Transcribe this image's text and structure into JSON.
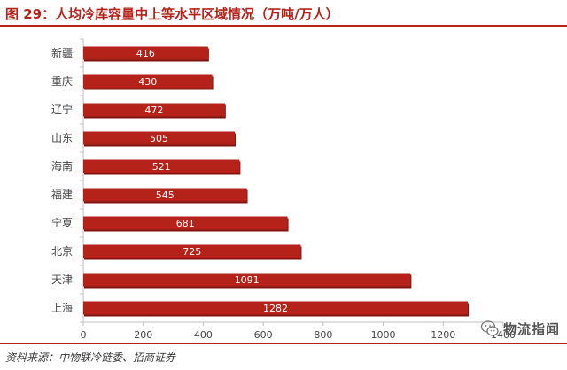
{
  "title": "图 29：人均冷库容量中上等水平区域情况（万吨/万人）",
  "source": "资料来源：中物联冷链委、招商证券",
  "watermark": {
    "text": "物流指闻",
    "icon": "wechat-icon"
  },
  "colors": {
    "bar": "#b5221a",
    "bar_edge": "#7f1611",
    "accent": "#b5221a",
    "axis": "#bfbfbf",
    "text": "#444444"
  },
  "chart_data": {
    "type": "bar",
    "orientation": "horizontal",
    "categories": [
      "新疆",
      "重庆",
      "辽宁",
      "山东",
      "海南",
      "福建",
      "宁夏",
      "北京",
      "天津",
      "上海"
    ],
    "values": [
      416,
      430,
      472,
      505,
      521,
      545,
      681,
      725,
      1091,
      1282
    ],
    "data_labels": [
      "416",
      "430",
      "472",
      "505",
      "521",
      "545",
      "681",
      "725",
      "1091",
      "1282"
    ],
    "xlim": [
      0,
      1400
    ],
    "x_ticks": [
      0,
      200,
      400,
      600,
      800,
      1000,
      1200,
      1400
    ],
    "x_tick_labels": [
      "0",
      "200",
      "400",
      "600",
      "800",
      "1000",
      "1200",
      "1400"
    ],
    "grid": false,
    "legend": "none"
  }
}
